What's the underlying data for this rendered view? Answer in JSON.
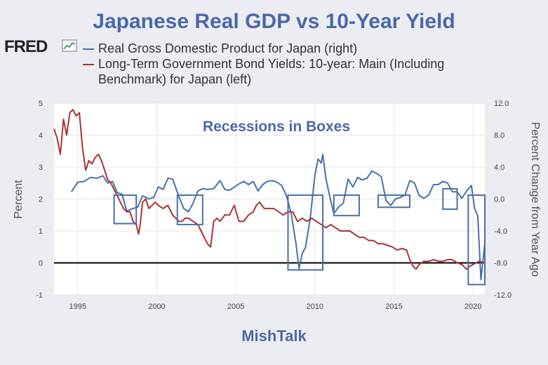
{
  "page": {
    "title": "Japanese Real GDP vs 10-Year Yield",
    "logo_text": "FRED",
    "footer": "MishTalk"
  },
  "chart_data": {
    "type": "line",
    "title": "Japanese Real GDP vs 10-Year Yield",
    "annotation": "Recessions in Boxes",
    "ylabel_left": "Percent",
    "ylabel_right": "Percent Change from Year Ago",
    "xlim": [
      1993.5,
      2020.75
    ],
    "ylim_left": [
      -1,
      5
    ],
    "ylim_right": [
      -12.0,
      12.0
    ],
    "x_ticks": [
      1995,
      2000,
      2005,
      2010,
      2015,
      2020
    ],
    "y_ticks_left": [
      -1,
      0,
      1,
      2,
      3,
      4,
      5
    ],
    "y_ticks_right": [
      -12.0,
      -8.0,
      -4.0,
      0.0,
      4.0,
      8.0,
      12.0
    ],
    "zero_line_left": 0,
    "colors": {
      "gdp": "#4572a7",
      "yield": "#aa3333",
      "box": "#4a6ea8",
      "plot_bg": "#ffffff"
    },
    "series": [
      {
        "name": "Real Gross Domestic Product for Japan (right)",
        "axis": "right",
        "color": "#4572a7",
        "x": [
          1994.6,
          1995.0,
          1995.4,
          1995.8,
          1996.2,
          1996.6,
          1996.9,
          1997.2,
          1997.5,
          1997.8,
          1998.1,
          1998.5,
          1998.8,
          1999.1,
          1999.5,
          1999.8,
          2000.1,
          2000.4,
          2000.7,
          2001.0,
          2001.4,
          2001.7,
          2002.0,
          2002.3,
          2002.6,
          2002.9,
          2003.2,
          2003.6,
          2004.0,
          2004.3,
          2004.6,
          2004.9,
          2005.2,
          2005.5,
          2005.8,
          2006.1,
          2006.4,
          2006.7,
          2007.0,
          2007.3,
          2007.6,
          2007.9,
          2008.2,
          2008.5,
          2008.8,
          2009.0,
          2009.2,
          2009.4,
          2009.7,
          2010.0,
          2010.2,
          2010.4,
          2010.5,
          2010.7,
          2011.0,
          2011.2,
          2011.5,
          2011.8,
          2012.1,
          2012.4,
          2012.7,
          2013.0,
          2013.3,
          2013.6,
          2013.9,
          2014.2,
          2014.5,
          2014.8,
          2015.1,
          2015.4,
          2015.7,
          2016.0,
          2016.3,
          2016.6,
          2016.9,
          2017.2,
          2017.5,
          2017.8,
          2018.1,
          2018.4,
          2018.7,
          2019.0,
          2019.3,
          2019.6,
          2019.9,
          2020.1,
          2020.3,
          2020.5,
          2020.75
        ],
        "values": [
          0.9,
          2.1,
          2.2,
          2.7,
          2.6,
          2.9,
          2.0,
          2.2,
          0.8,
          0.6,
          -1.5,
          -1.2,
          -1.0,
          0.4,
          0.0,
          0.2,
          1.5,
          1.2,
          2.6,
          2.5,
          0.3,
          -1.2,
          -1.6,
          -0.5,
          1.0,
          1.3,
          1.2,
          1.3,
          2.3,
          1.2,
          1.1,
          1.5,
          1.9,
          2.2,
          1.8,
          2.2,
          1.0,
          1.8,
          2.2,
          2.3,
          2.1,
          1.7,
          0.4,
          -1.8,
          -5.5,
          -8.7,
          -6.8,
          -6.1,
          -2.5,
          3.0,
          5.0,
          4.5,
          5.6,
          2.5,
          -0.2,
          -1.8,
          -1.0,
          -0.5,
          2.5,
          1.5,
          2.7,
          2.4,
          2.6,
          3.5,
          3.2,
          2.8,
          -0.2,
          -0.8,
          0.0,
          0.2,
          0.5,
          2.3,
          2.0,
          0.4,
          0.1,
          0.5,
          1.8,
          1.8,
          2.2,
          2.0,
          0.9,
          0.9,
          0.1,
          1.0,
          1.7,
          -1.2,
          -2.1,
          -10.1,
          -5.5
        ]
      },
      {
        "name": "Long-Term Government Bond Yields: 10-year: Main (Including Benchmark) for Japan (left)",
        "axis": "left",
        "color": "#aa3333",
        "x": [
          1993.5,
          1993.7,
          1993.9,
          1994.1,
          1994.3,
          1994.5,
          1994.7,
          1994.9,
          1995.1,
          1995.3,
          1995.5,
          1995.7,
          1995.9,
          1996.1,
          1996.3,
          1996.5,
          1996.7,
          1996.9,
          1997.1,
          1997.3,
          1997.5,
          1997.7,
          1997.9,
          1998.1,
          1998.3,
          1998.5,
          1998.7,
          1998.85,
          1998.95,
          1999.1,
          1999.3,
          1999.5,
          1999.7,
          1999.9,
          2000.1,
          2000.4,
          2000.7,
          2001.0,
          2001.2,
          2001.4,
          2001.6,
          2001.8,
          2002.0,
          2002.3,
          2002.6,
          2002.9,
          2003.2,
          2003.4,
          2003.6,
          2003.8,
          2004.0,
          2004.3,
          2004.6,
          2004.9,
          2005.2,
          2005.5,
          2005.8,
          2006.1,
          2006.3,
          2006.5,
          2006.8,
          2007.1,
          2007.4,
          2007.7,
          2008.0,
          2008.3,
          2008.6,
          2008.9,
          2009.2,
          2009.5,
          2009.8,
          2010.1,
          2010.4,
          2010.7,
          2011.0,
          2011.3,
          2011.6,
          2011.9,
          2012.2,
          2012.5,
          2012.8,
          2013.1,
          2013.4,
          2013.7,
          2014.0,
          2014.3,
          2014.6,
          2014.9,
          2015.2,
          2015.5,
          2015.8,
          2016.0,
          2016.2,
          2016.4,
          2016.6,
          2016.9,
          2017.2,
          2017.5,
          2017.8,
          2018.1,
          2018.4,
          2018.7,
          2019.0,
          2019.3,
          2019.6,
          2019.8,
          2020.0,
          2020.2,
          2020.4,
          2020.75
        ],
        "values": [
          4.2,
          3.9,
          3.4,
          4.5,
          4.0,
          4.7,
          4.8,
          4.6,
          4.7,
          3.6,
          2.9,
          3.2,
          3.1,
          3.3,
          3.4,
          3.2,
          2.9,
          2.6,
          2.5,
          2.3,
          2.1,
          1.9,
          1.7,
          1.6,
          1.6,
          1.3,
          1.2,
          0.9,
          1.2,
          1.9,
          2.0,
          1.7,
          1.8,
          1.9,
          1.8,
          1.7,
          1.8,
          1.5,
          1.4,
          1.3,
          1.3,
          1.4,
          1.4,
          1.3,
          1.2,
          0.9,
          0.6,
          0.5,
          1.3,
          1.4,
          1.3,
          1.5,
          1.5,
          1.8,
          1.3,
          1.3,
          1.5,
          1.6,
          1.8,
          1.9,
          1.7,
          1.7,
          1.7,
          1.6,
          1.5,
          1.6,
          1.6,
          1.3,
          1.4,
          1.3,
          1.4,
          1.3,
          1.2,
          1.1,
          1.2,
          1.1,
          1.0,
          1.0,
          1.0,
          0.9,
          0.8,
          0.8,
          0.7,
          0.7,
          0.6,
          0.6,
          0.55,
          0.5,
          0.4,
          0.45,
          0.4,
          0.1,
          -0.1,
          -0.2,
          -0.05,
          0.05,
          0.05,
          0.1,
          0.05,
          0.05,
          0.1,
          0.1,
          0.0,
          -0.05,
          -0.2,
          -0.1,
          -0.05,
          0.0,
          0.05,
          0.0
        ]
      }
    ],
    "recession_boxes": [
      {
        "x": [
          1997.3,
          1998.7
        ],
        "y_left": [
          1.23,
          2.12
        ]
      },
      {
        "x": [
          2001.3,
          2002.9
        ],
        "y_left": [
          1.2,
          2.12
        ]
      },
      {
        "x": [
          2008.3,
          2010.5
        ],
        "y_left": [
          -0.22,
          2.12
        ]
      },
      {
        "x": [
          2011.2,
          2012.8
        ],
        "y_left": [
          1.48,
          2.12
        ]
      },
      {
        "x": [
          2014.0,
          2016.0
        ],
        "y_left": [
          1.74,
          2.12
        ]
      },
      {
        "x": [
          2018.1,
          2019.0
        ],
        "y_left": [
          1.68,
          2.32
        ]
      },
      {
        "x": [
          2019.7,
          2020.75
        ],
        "y_left": [
          -0.68,
          2.12
        ]
      }
    ]
  }
}
